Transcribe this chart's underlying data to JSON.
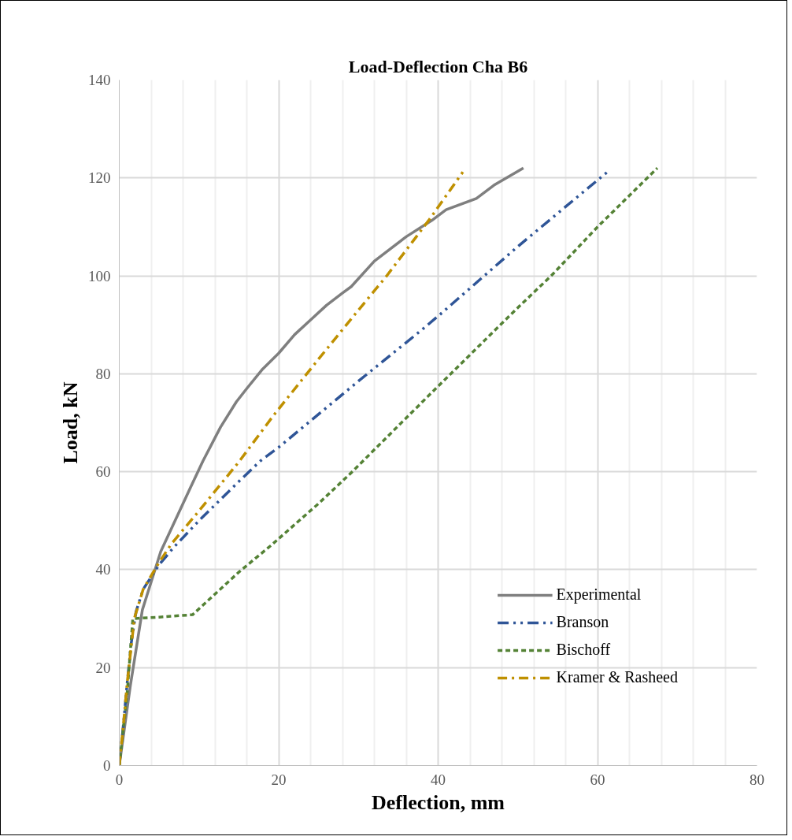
{
  "chart_data": {
    "type": "line",
    "title": "Load-Deflection Cha B6",
    "xlabel": "Deflection, mm",
    "ylabel": "Load, kN",
    "xlim": [
      0,
      80
    ],
    "xticks": [
      0,
      20,
      40,
      60,
      80
    ],
    "ylim": [
      0,
      140
    ],
    "yticks": [
      0,
      20,
      40,
      60,
      80,
      100,
      120,
      140
    ],
    "grid": true,
    "legend": "bottom right",
    "series": [
      {
        "name": "Experimental",
        "color": "#7f7f7f",
        "line_style": "solid",
        "x": [
          0,
          1.4,
          2.9,
          5.2,
          7,
          9,
          10.5,
          12.7,
          14.7,
          16,
          18,
          20,
          22,
          24,
          26,
          28,
          29.1,
          32,
          34,
          36,
          39.2,
          41,
          44.8,
          47,
          50.7
        ],
        "values": [
          0,
          16.4,
          31.8,
          43.7,
          50,
          57,
          62.2,
          69.1,
          74.3,
          77,
          81,
          84.2,
          88,
          91,
          94,
          96.5,
          97.8,
          103,
          105.5,
          108,
          111.3,
          113.5,
          115.8,
          118.5,
          122
        ]
      },
      {
        "name": "Branson",
        "color": "#2f5597",
        "line_style": "longdashdotdot",
        "x": [
          0,
          0.5,
          1,
          1.5,
          2.1,
          3,
          5,
          6.8,
          10,
          15,
          17.7,
          20,
          30,
          37.9,
          40.3,
          50,
          61.3
        ],
        "values": [
          0,
          8,
          17,
          25,
          31.4,
          36,
          41,
          44.5,
          50,
          58,
          62.2,
          65,
          78.5,
          88.9,
          92.2,
          106,
          121.3
        ]
      },
      {
        "name": "Bischoff",
        "color": "#548235",
        "line_style": "dashed",
        "x": [
          0,
          1,
          1.7,
          5,
          9.2,
          12,
          15,
          19,
          25,
          29.1,
          39.9,
          50,
          54.3,
          60,
          67.5
        ],
        "values": [
          0,
          15,
          30,
          30.3,
          30.8,
          35,
          39.5,
          44.9,
          53.5,
          59.8,
          77.3,
          93.5,
          100.2,
          110,
          122
        ]
      },
      {
        "name": "Kramer & Rasheed",
        "color": "#bf9000",
        "line_style": "dashdot",
        "x": [
          0,
          0.5,
          1,
          1.9,
          3,
          5,
          6.6,
          10,
          15,
          19.4,
          25,
          30,
          33.5,
          38.9,
          43.1
        ],
        "values": [
          0,
          8,
          17,
          30.1,
          36,
          41.5,
          45.4,
          52,
          62,
          71.6,
          83,
          93,
          99.9,
          111.5,
          121.2
        ]
      }
    ]
  }
}
